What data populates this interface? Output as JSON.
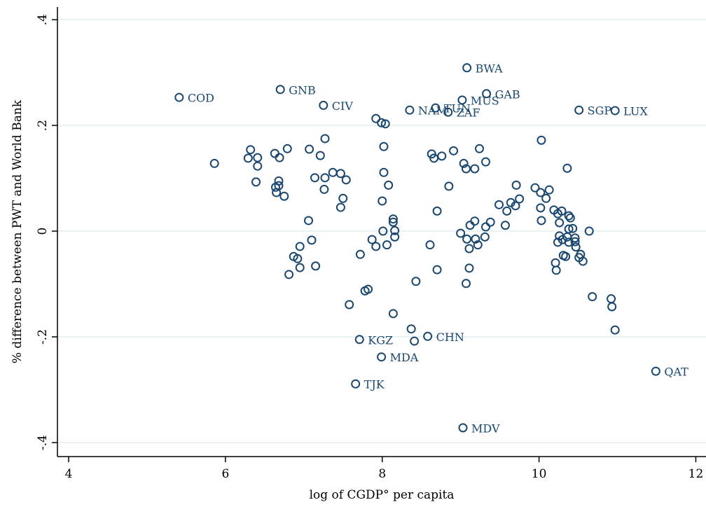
{
  "chart_data": {
    "type": "scatter",
    "x_label": "log of CGDP° per capita",
    "y_label": "% difference between PWT and World Bank",
    "color": "#1a476f",
    "grid": true,
    "xlim": [
      3.857,
      12.13
    ],
    "ylim": [
      -0.4265,
      0.424
    ],
    "xticks": [
      4,
      6,
      8,
      10,
      12
    ],
    "yticks": [
      {
        "value": -0.4,
        "label": "-.4"
      },
      {
        "value": -0.2,
        "label": "-.2"
      },
      0,
      {
        "value": 0.2,
        "label": ".2"
      },
      {
        "value": 0.4,
        "label": ".4"
      }
    ],
    "x": [
      5.41,
      6.7,
      7.25,
      9.08,
      9.33,
      9.02,
      8.35,
      8.68,
      8.84,
      10.51,
      10.97,
      7.71,
      8.58,
      7.99,
      7.66,
      9.03,
      11.49,
      5.86,
      6.32,
      6.29,
      6.41,
      6.41,
      6.39,
      6.63,
      6.69,
      6.79,
      6.68,
      6.68,
      6.64,
      6.65,
      6.75,
      7.07,
      7.27,
      7.14,
      7.27,
      7.37,
      7.47,
      7.54,
      7.26,
      7.21,
      7.5,
      7.47,
      7.06,
      7.1,
      6.95,
      6.92,
      6.95,
      6.81,
      7.15,
      6.87,
      7.72,
      7.58,
      7.82,
      7.78,
      7.87,
      7.92,
      8.01,
      8.06,
      8.14,
      7.92,
      7.99,
      8.04,
      8.14,
      8.14,
      8.02,
      8.02,
      8.08,
      8.0,
      8.16,
      8.16,
      8.37,
      8.41,
      8.43,
      8.63,
      8.66,
      8.76,
      8.91,
      9.04,
      9.07,
      9.18,
      9.24,
      9.32,
      8.85,
      8.7,
      8.61,
      8.7,
      9.0,
      9.08,
      9.12,
      9.18,
      9.19,
      9.22,
      9.31,
      9.32,
      9.38,
      9.11,
      9.07,
      9.11,
      9.49,
      9.59,
      9.64,
      9.7,
      9.57,
      9.71,
      9.75,
      9.95,
      10.02,
      10.09,
      10.13,
      10.03,
      10.02,
      10.03,
      10.19,
      10.24,
      10.29,
      10.22,
      10.21,
      10.31,
      10.36,
      10.26,
      10.3,
      10.36,
      10.38,
      10.4,
      10.38,
      10.38,
      10.26,
      10.24,
      10.34,
      10.43,
      10.46,
      10.47,
      10.51,
      10.53,
      10.56,
      10.64,
      10.68,
      10.92,
      10.93,
      10.97,
      10.46
    ],
    "values": [
      0.253,
      0.268,
      0.238,
      0.309,
      0.26,
      0.248,
      0.229,
      0.233,
      0.225,
      0.229,
      0.228,
      -0.205,
      -0.199,
      -0.238,
      -0.289,
      -0.372,
      -0.265,
      0.128,
      0.154,
      0.138,
      0.139,
      0.123,
      0.093,
      0.147,
      0.139,
      0.156,
      0.095,
      0.086,
      0.083,
      0.073,
      0.066,
      0.155,
      0.175,
      0.101,
      0.101,
      0.111,
      0.109,
      0.097,
      0.079,
      0.143,
      0.062,
      0.045,
      0.02,
      -0.017,
      -0.029,
      -0.052,
      -0.069,
      -0.082,
      -0.066,
      -0.048,
      -0.044,
      -0.139,
      -0.11,
      -0.113,
      -0.016,
      -0.029,
      0.0,
      -0.026,
      -0.156,
      0.213,
      0.205,
      0.203,
      0.023,
      0.017,
      0.16,
      0.111,
      0.087,
      0.057,
      0.001,
      -0.011,
      -0.185,
      -0.208,
      -0.095,
      0.146,
      0.138,
      0.142,
      0.152,
      0.128,
      0.118,
      0.118,
      0.156,
      0.131,
      0.085,
      0.038,
      -0.026,
      -0.073,
      -0.004,
      -0.015,
      0.011,
      0.019,
      -0.015,
      -0.026,
      -0.011,
      0.008,
      0.017,
      -0.07,
      -0.099,
      -0.033,
      0.05,
      0.038,
      0.054,
      0.048,
      0.011,
      0.087,
      0.061,
      0.082,
      0.073,
      0.062,
      0.078,
      0.172,
      0.044,
      0.02,
      0.04,
      0.033,
      0.038,
      -0.074,
      -0.06,
      -0.046,
      0.119,
      0.016,
      -0.016,
      -0.011,
      0.029,
      0.025,
      0.004,
      -0.021,
      -0.009,
      -0.021,
      -0.048,
      0.005,
      -0.02,
      -0.03,
      -0.05,
      -0.044,
      -0.057,
      0.0,
      -0.124,
      -0.128,
      -0.143,
      -0.187,
      -0.013
    ],
    "point_labels": [
      "COD",
      "GNB",
      "CIV",
      "BWA",
      "GAB",
      "MUS",
      "NAM",
      "TUN",
      "ZAF",
      "SGP",
      "LUX",
      "KGZ",
      "CHN",
      "MDA",
      "TJK",
      "MDV",
      "QAT",
      null,
      null,
      null,
      null,
      null,
      null,
      null,
      null,
      null,
      null,
      null,
      null,
      null,
      null,
      null,
      null,
      null,
      null,
      null,
      null,
      null,
      null,
      null,
      null,
      null,
      null,
      null,
      null,
      null,
      null,
      null,
      null,
      null,
      null,
      null,
      null,
      null,
      null,
      null,
      null,
      null,
      null,
      null,
      null,
      null,
      null,
      null,
      null,
      null,
      null,
      null,
      null,
      null,
      null,
      null,
      null,
      null,
      null,
      null,
      null,
      null,
      null,
      null,
      null,
      null,
      null,
      null,
      null,
      null,
      null,
      null,
      null,
      null,
      null,
      null,
      null,
      null,
      null,
      null,
      null,
      null,
      null,
      null,
      null,
      null,
      null,
      null,
      null,
      null,
      null,
      null,
      null,
      null,
      null,
      null,
      null,
      null,
      null,
      null,
      null,
      null,
      null,
      null,
      null,
      null,
      null,
      null,
      null,
      null,
      null,
      null,
      null,
      null,
      null,
      null,
      null,
      null,
      null,
      null,
      null,
      null,
      null,
      null,
      null
    ]
  }
}
